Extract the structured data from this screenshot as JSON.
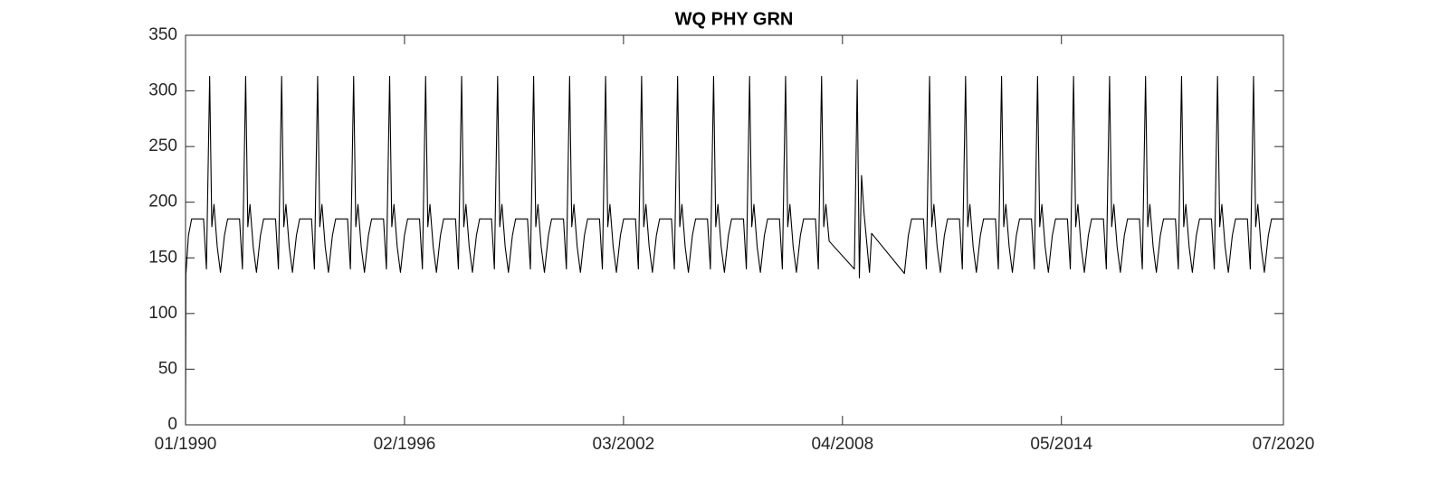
{
  "chart_data": {
    "type": "line",
    "title": "WQ PHY GRN",
    "xlim": [
      1990,
      2020.5
    ],
    "xticks": [
      {
        "value": 1990,
        "label": "01/1990"
      },
      {
        "value": 1996.083,
        "label": "02/1996"
      },
      {
        "value": 2002.167,
        "label": "03/2002"
      },
      {
        "value": 2008.25,
        "label": "04/2008"
      },
      {
        "value": 2014.333,
        "label": "05/2014"
      },
      {
        "value": 2020.5,
        "label": "07/2020"
      }
    ],
    "ylim": [
      0,
      350
    ],
    "yticks": [
      0,
      50,
      100,
      150,
      200,
      250,
      300,
      350
    ],
    "grid": false,
    "series": [
      {
        "name": "WQ PHY GRN",
        "color": "#000000",
        "x": [
          1990,
          1990.01,
          1990.08,
          1990.17,
          1990.5,
          1990.58,
          1990.67,
          1990.73,
          1990.79,
          1990.88,
          1990.97,
          1991.08,
          1991.17,
          1991.5,
          1991.58,
          1991.67,
          1991.73,
          1991.79,
          1991.88,
          1991.97,
          1992.08,
          1992.17,
          1992.5,
          1992.58,
          1992.67,
          1992.73,
          1992.79,
          1992.88,
          1992.97,
          1993.08,
          1993.17,
          1993.5,
          1993.58,
          1993.67,
          1993.73,
          1993.79,
          1993.88,
          1993.97,
          1994.08,
          1994.17,
          1994.5,
          1994.58,
          1994.67,
          1994.73,
          1994.79,
          1994.88,
          1994.97,
          1995.08,
          1995.17,
          1995.5,
          1995.58,
          1995.67,
          1995.73,
          1995.79,
          1995.88,
          1995.97,
          1996.08,
          1996.17,
          1996.5,
          1996.58,
          1996.67,
          1996.73,
          1996.79,
          1996.88,
          1996.97,
          1997.08,
          1997.17,
          1997.5,
          1997.58,
          1997.67,
          1997.73,
          1997.79,
          1997.88,
          1997.97,
          1998.08,
          1998.17,
          1998.5,
          1998.58,
          1998.67,
          1998.73,
          1998.79,
          1998.88,
          1998.97,
          1999.08,
          1999.17,
          1999.5,
          1999.58,
          1999.67,
          1999.73,
          1999.79,
          1999.88,
          1999.97,
          2000.08,
          2000.17,
          2000.5,
          2000.58,
          2000.67,
          2000.73,
          2000.79,
          2000.88,
          2000.97,
          2001.08,
          2001.17,
          2001.5,
          2001.58,
          2001.67,
          2001.73,
          2001.79,
          2001.88,
          2001.97,
          2002.08,
          2002.17,
          2002.5,
          2002.58,
          2002.67,
          2002.73,
          2002.79,
          2002.88,
          2002.97,
          2003.08,
          2003.17,
          2003.5,
          2003.58,
          2003.67,
          2003.73,
          2003.79,
          2003.88,
          2003.97,
          2004.08,
          2004.17,
          2004.5,
          2004.58,
          2004.67,
          2004.73,
          2004.79,
          2004.88,
          2004.97,
          2005.08,
          2005.17,
          2005.5,
          2005.58,
          2005.67,
          2005.73,
          2005.79,
          2005.88,
          2005.97,
          2006.08,
          2006.17,
          2006.5,
          2006.58,
          2006.67,
          2006.73,
          2006.79,
          2006.88,
          2006.97,
          2007.08,
          2007.17,
          2007.5,
          2007.58,
          2007.67,
          2007.73,
          2007.79,
          2007.88,
          2008.58,
          2008.66,
          2008.72,
          2008.78,
          2008.85,
          2009.0,
          2009.06,
          2009.97,
          2010.08,
          2010.17,
          2010.5,
          2010.58,
          2010.67,
          2010.73,
          2010.79,
          2010.88,
          2010.97,
          2011.08,
          2011.17,
          2011.5,
          2011.58,
          2011.67,
          2011.73,
          2011.79,
          2011.88,
          2011.97,
          2012.08,
          2012.17,
          2012.5,
          2012.58,
          2012.67,
          2012.73,
          2012.79,
          2012.88,
          2012.97,
          2013.08,
          2013.17,
          2013.5,
          2013.58,
          2013.67,
          2013.73,
          2013.79,
          2013.88,
          2013.97,
          2014.08,
          2014.17,
          2014.5,
          2014.58,
          2014.67,
          2014.73,
          2014.79,
          2014.88,
          2014.97,
          2015.08,
          2015.17,
          2015.5,
          2015.58,
          2015.67,
          2015.73,
          2015.79,
          2015.88,
          2015.97,
          2016.08,
          2016.17,
          2016.5,
          2016.58,
          2016.67,
          2016.73,
          2016.79,
          2016.88,
          2016.97,
          2017.08,
          2017.17,
          2017.5,
          2017.58,
          2017.67,
          2017.73,
          2017.79,
          2017.88,
          2017.97,
          2018.08,
          2018.17,
          2018.5,
          2018.58,
          2018.67,
          2018.73,
          2018.79,
          2018.88,
          2018.97,
          2019.08,
          2019.17,
          2019.5,
          2019.58,
          2019.67,
          2019.73,
          2019.79,
          2019.88,
          2019.97,
          2020.08,
          2020.17,
          2020.5
        ],
        "values": [
          0,
          135,
          170,
          185,
          185,
          140,
          313,
          178,
          198,
          160,
          137,
          170,
          185,
          185,
          140,
          313,
          178,
          198,
          160,
          137,
          170,
          185,
          185,
          140,
          313,
          178,
          198,
          160,
          137,
          170,
          185,
          185,
          140,
          313,
          178,
          198,
          160,
          137,
          170,
          185,
          185,
          140,
          313,
          178,
          198,
          160,
          137,
          170,
          185,
          185,
          140,
          313,
          178,
          198,
          160,
          137,
          170,
          185,
          185,
          140,
          313,
          178,
          198,
          160,
          137,
          170,
          185,
          185,
          140,
          313,
          178,
          198,
          160,
          137,
          170,
          185,
          185,
          140,
          313,
          178,
          198,
          160,
          137,
          170,
          185,
          185,
          140,
          313,
          178,
          198,
          160,
          137,
          170,
          185,
          185,
          140,
          313,
          178,
          198,
          160,
          137,
          170,
          185,
          185,
          140,
          313,
          178,
          198,
          160,
          137,
          170,
          185,
          185,
          140,
          313,
          178,
          198,
          160,
          137,
          170,
          185,
          185,
          140,
          313,
          178,
          198,
          160,
          137,
          170,
          185,
          185,
          140,
          313,
          178,
          198,
          160,
          137,
          170,
          185,
          185,
          140,
          313,
          178,
          198,
          160,
          137,
          170,
          185,
          185,
          140,
          313,
          178,
          198,
          160,
          137,
          170,
          185,
          185,
          140,
          313,
          178,
          198,
          165,
          140,
          310,
          132,
          224,
          190,
          137,
          172,
          136,
          170,
          185,
          185,
          140,
          313,
          178,
          198,
          160,
          137,
          170,
          185,
          185,
          140,
          313,
          178,
          198,
          160,
          137,
          170,
          185,
          185,
          140,
          313,
          178,
          198,
          160,
          137,
          170,
          185,
          185,
          140,
          313,
          178,
          198,
          160,
          137,
          170,
          185,
          185,
          140,
          313,
          178,
          198,
          160,
          137,
          170,
          185,
          185,
          140,
          313,
          178,
          198,
          160,
          137,
          170,
          185,
          185,
          140,
          313,
          178,
          198,
          160,
          137,
          170,
          185,
          185,
          140,
          313,
          178,
          198,
          160,
          137,
          170,
          185,
          185,
          140,
          313,
          178,
          198,
          160,
          137,
          170,
          185,
          185,
          140,
          313,
          178,
          198,
          160,
          137,
          170,
          185,
          185
        ]
      }
    ]
  }
}
